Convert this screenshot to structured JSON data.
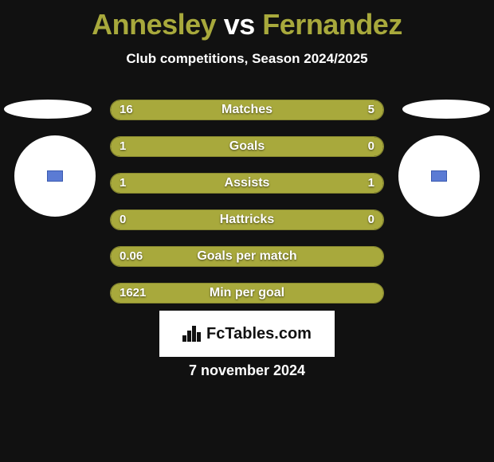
{
  "title": {
    "player1": "Annesley",
    "vs": "vs",
    "player2": "Fernandez"
  },
  "subtitle": "Club competitions, Season 2024/2025",
  "date": "7 november 2024",
  "logo_text": "FcTables.com",
  "colors": {
    "accent": "#a8a93c",
    "background": "#111111",
    "text": "#ffffff",
    "badge": "#ffffff",
    "badge_inner": "#5b7bd4"
  },
  "bars": [
    {
      "label": "Matches",
      "left_val": "16",
      "right_val": "5",
      "left_pct": 73,
      "right_pct": 27,
      "show_right": true
    },
    {
      "label": "Goals",
      "left_val": "1",
      "right_val": "0",
      "left_pct": 76,
      "right_pct": 24,
      "show_right": true
    },
    {
      "label": "Assists",
      "left_val": "1",
      "right_val": "1",
      "left_pct": 42,
      "right_pct": 58,
      "show_right": true
    },
    {
      "label": "Hattricks",
      "left_val": "0",
      "right_val": "0",
      "left_pct": 42,
      "right_pct": 58,
      "show_right": true
    },
    {
      "label": "Goals per match",
      "left_val": "0.06",
      "right_val": "",
      "left_pct": 100,
      "right_pct": 0,
      "show_right": false
    },
    {
      "label": "Min per goal",
      "left_val": "1621",
      "right_val": "",
      "left_pct": 100,
      "right_pct": 0,
      "show_right": false
    }
  ]
}
